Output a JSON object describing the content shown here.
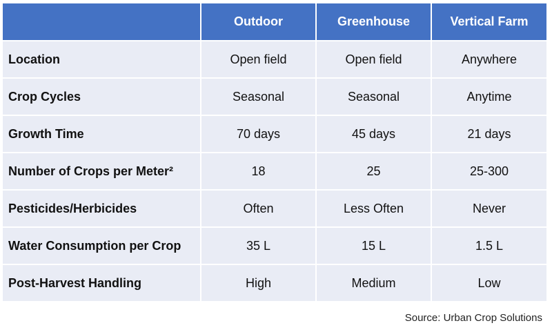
{
  "table": {
    "header": [
      "",
      "Outdoor",
      "Greenhouse",
      "Vertical Farm"
    ],
    "rows": [
      {
        "label": "Location",
        "outdoor": "Open field",
        "greenhouse": "Open field",
        "vertical": "Anywhere"
      },
      {
        "label": "Crop Cycles",
        "outdoor": "Seasonal",
        "greenhouse": "Seasonal",
        "vertical": "Anytime"
      },
      {
        "label": "Growth Time",
        "outdoor": "70 days",
        "greenhouse": "45 days",
        "vertical": "21 days"
      },
      {
        "label": "Number of Crops per Meter²",
        "outdoor": "18",
        "greenhouse": "25",
        "vertical": "25-300"
      },
      {
        "label": "Pesticides/Herbicides",
        "outdoor": "Often",
        "greenhouse": "Less Often",
        "vertical": "Never"
      },
      {
        "label": "Water Consumption per Crop",
        "outdoor": "35 L",
        "greenhouse": "15 L",
        "vertical": "1.5 L"
      },
      {
        "label": "Post-Harvest Handling",
        "outdoor": "High",
        "greenhouse": "Medium",
        "vertical": "Low"
      }
    ]
  },
  "source": "Source: Urban Crop Solutions",
  "colors": {
    "header_bg": "#4472c4",
    "row_bg": "#e9ecf5"
  }
}
